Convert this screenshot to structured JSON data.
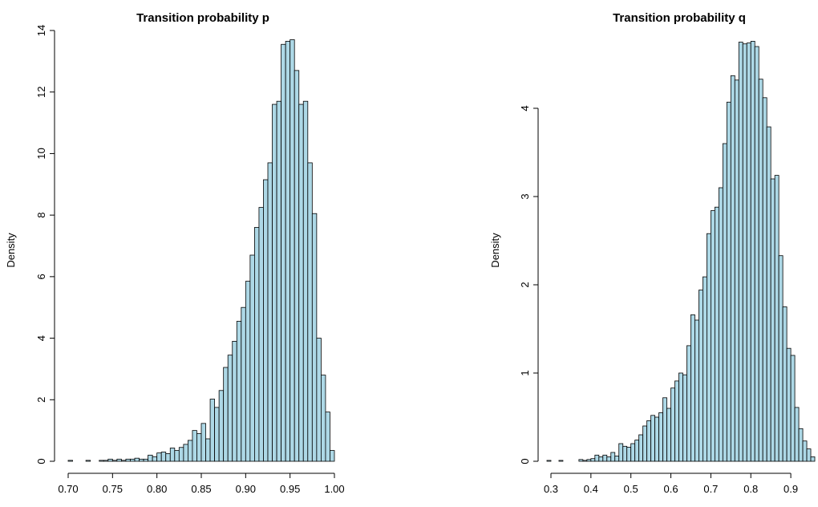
{
  "chart_data": [
    {
      "type": "histogram",
      "title": "Transition probability p",
      "y_label": "Density",
      "color": "#add8e6",
      "bins": [
        0.7,
        0.705,
        0.71,
        0.715,
        0.72,
        0.725,
        0.73,
        0.735,
        0.74,
        0.745,
        0.75,
        0.755,
        0.76,
        0.765,
        0.77,
        0.775,
        0.78,
        0.785,
        0.79,
        0.795,
        0.8,
        0.805,
        0.81,
        0.815,
        0.82,
        0.825,
        0.83,
        0.835,
        0.84,
        0.845,
        0.85,
        0.855,
        0.86,
        0.865,
        0.87,
        0.875,
        0.88,
        0.885,
        0.89,
        0.895,
        0.9,
        0.905,
        0.91,
        0.915,
        0.92,
        0.925,
        0.93,
        0.935,
        0.94,
        0.945,
        0.95,
        0.955,
        0.96,
        0.965,
        0.97,
        0.975,
        0.98,
        0.985,
        0.99,
        0.995,
        1.0
      ],
      "values": [
        0.03,
        0,
        0,
        0,
        0.03,
        0,
        0,
        0.03,
        0.03,
        0.07,
        0.03,
        0.07,
        0.03,
        0.07,
        0.07,
        0.1,
        0.07,
        0.07,
        0.2,
        0.15,
        0.27,
        0.3,
        0.25,
        0.43,
        0.35,
        0.45,
        0.55,
        0.68,
        1.0,
        0.9,
        1.23,
        0.73,
        2.02,
        1.75,
        2.3,
        3.05,
        3.45,
        3.9,
        4.55,
        5.0,
        5.85,
        6.7,
        7.6,
        8.25,
        9.15,
        9.7,
        11.6,
        11.7,
        13.55,
        13.65,
        13.7,
        12.7,
        11.6,
        11.7,
        9.7,
        8.05,
        4.0,
        2.8,
        1.6,
        0.35
      ],
      "xlim": [
        0.7,
        1.0
      ],
      "ylim": [
        0,
        14
      ],
      "xticks": [
        {
          "value": 0.7,
          "label": "0.70"
        },
        {
          "value": 0.75,
          "label": "0.75"
        },
        {
          "value": 0.8,
          "label": "0.80"
        },
        {
          "value": 0.85,
          "label": "0.85"
        },
        {
          "value": 0.9,
          "label": "0.90"
        },
        {
          "value": 0.95,
          "label": "0.95"
        },
        {
          "value": 1.0,
          "label": "1.00"
        }
      ],
      "yticks": [
        0,
        2,
        4,
        6,
        8,
        10,
        12,
        14
      ]
    },
    {
      "type": "histogram",
      "title": "Transition probability q",
      "y_label": "Density",
      "color": "#add8e6",
      "bins": [
        0.29,
        0.3,
        0.31,
        0.32,
        0.33,
        0.34,
        0.35,
        0.36,
        0.37,
        0.38,
        0.39,
        0.4,
        0.41,
        0.42,
        0.43,
        0.44,
        0.45,
        0.46,
        0.47,
        0.48,
        0.49,
        0.5,
        0.51,
        0.52,
        0.53,
        0.54,
        0.55,
        0.56,
        0.57,
        0.58,
        0.59,
        0.6,
        0.61,
        0.62,
        0.63,
        0.64,
        0.65,
        0.66,
        0.67,
        0.68,
        0.69,
        0.7,
        0.71,
        0.72,
        0.73,
        0.74,
        0.75,
        0.76,
        0.77,
        0.78,
        0.79,
        0.8,
        0.81,
        0.82,
        0.83,
        0.84,
        0.85,
        0.86,
        0.87,
        0.88,
        0.89,
        0.9,
        0.91,
        0.92,
        0.93,
        0.94,
        0.95,
        0.96
      ],
      "values": [
        0.01,
        0,
        0,
        0.01,
        0,
        0,
        0,
        0,
        0.02,
        0.01,
        0.02,
        0.03,
        0.07,
        0.05,
        0.07,
        0.05,
        0.1,
        0.06,
        0.2,
        0.17,
        0.16,
        0.2,
        0.24,
        0.3,
        0.4,
        0.46,
        0.52,
        0.5,
        0.55,
        0.72,
        0.6,
        0.83,
        0.91,
        1.0,
        0.98,
        1.31,
        1.66,
        1.6,
        1.94,
        2.09,
        2.58,
        2.84,
        2.88,
        3.1,
        3.6,
        4.07,
        4.37,
        4.32,
        4.75,
        4.73,
        4.74,
        4.76,
        4.7,
        4.33,
        4.12,
        3.79,
        3.2,
        3.24,
        2.33,
        1.75,
        1.28,
        1.2,
        0.61,
        0.37,
        0.23,
        0.14,
        0.05
      ],
      "xlim": [
        0.29,
        0.96
      ],
      "ylim": [
        0,
        4.8
      ],
      "xticks": [
        0.3,
        0.4,
        0.5,
        0.6,
        0.7,
        0.8,
        0.9
      ],
      "yticks": [
        0,
        1,
        2,
        3,
        4
      ]
    }
  ]
}
